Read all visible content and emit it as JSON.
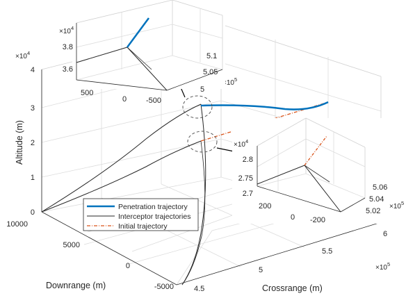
{
  "chart_data": {
    "type": "line",
    "dimensions": "3d",
    "xlabel": "Downrange (m)",
    "ylabel": "Crossrange (m)",
    "zlabel": "Altitude (m)",
    "x_ticks": [
      "10000",
      "5000",
      "0",
      "-5000"
    ],
    "y_ticks": [
      "4.5",
      "5",
      "5.5",
      "6"
    ],
    "y_exponent": "×10^5",
    "z_ticks": [
      "0",
      "1",
      "2",
      "3",
      "4"
    ],
    "z_exponent": "×10^4",
    "xlim": [
      -5000,
      10000
    ],
    "ylim": [
      450000,
      600000
    ],
    "zlim": [
      0,
      40000
    ],
    "grid": true,
    "legend_position": "bottom-left",
    "series": [
      {
        "name": "Penetration trajectory",
        "color": "#0072BD",
        "style": "solid-thick",
        "points": [
          [
            0,
            505000,
            30000
          ],
          [
            0,
            540000,
            30200
          ],
          [
            0,
            570000,
            30600
          ],
          [
            0,
            590000,
            31500
          ]
        ]
      },
      {
        "name": "Interceptor trajectories",
        "color": "#262626",
        "style": "solid-thin",
        "points": [
          [
            10000,
            450000,
            0
          ],
          [
            5000,
            474000,
            15000
          ],
          [
            1500,
            494000,
            26500
          ],
          [
            0,
            505000,
            30000
          ]
        ]
      },
      {
        "name": "Interceptor trajectories",
        "color": "#262626",
        "style": "solid-thin",
        "points": [
          [
            10000,
            450000,
            0
          ],
          [
            5000,
            474000,
            10500
          ],
          [
            1500,
            494000,
            18500
          ],
          [
            0,
            505000,
            21000
          ]
        ]
      },
      {
        "name": "Interceptor trajectories",
        "color": "#262626",
        "style": "solid-thin",
        "points": [
          [
            -5000,
            450000,
            0
          ],
          [
            -2500,
            488000,
            10000
          ],
          [
            -1200,
            500000,
            18000
          ],
          [
            0,
            505000,
            30000
          ]
        ]
      },
      {
        "name": "Initial trajectory",
        "color": "#D95319",
        "style": "dash-dot",
        "points": [
          [
            0,
            505000,
            21000
          ],
          [
            0,
            590000,
            31500
          ]
        ]
      }
    ],
    "inset_top": {
      "z_exponent": "×10^4",
      "z_ticks": [
        "3.6",
        "3.8"
      ],
      "x_ticks": [
        "500",
        "0",
        "-500"
      ],
      "y_ticks": [
        "5",
        "5.05",
        "5.1"
      ],
      "y_exponent": "×10^5"
    },
    "inset_bottom": {
      "z_exponent": "×10^4",
      "z_ticks": [
        "2.7",
        "2.75",
        "2.8"
      ],
      "x_ticks": [
        "200",
        "0",
        "-200"
      ],
      "y_ticks": [
        "5.02",
        "5.04",
        "5.06"
      ],
      "y_exponent": "×10^5"
    }
  },
  "legend": {
    "items": [
      {
        "label": "Penetration trajectory",
        "color": "#0072BD"
      },
      {
        "label": "Interceptor trajectories",
        "color": "#262626"
      },
      {
        "label": "Initial trajectory",
        "color": "#D95319"
      }
    ]
  },
  "labels": {
    "zlabel": "Altitude (m)",
    "xlabel": "Downrange (m)",
    "ylabel": "Crossrange (m)",
    "z_exp_base": "×10",
    "z_exp_power": "4",
    "y_exp_base": "×10",
    "y_exp_power": "5",
    "top_y_exp_base": "×10",
    "top_y_exp_power": "5",
    "inset_top_z_exp_base": "×10",
    "inset_top_z_exp_power": "4",
    "inset_top_y_exp_power": "5",
    "inset_bottom_z_exp_base": "×10",
    "inset_bottom_z_exp_power": "4",
    "inset_bottom_y_exp_power": "5",
    "inset_bottom_y_exp_base": "×10"
  }
}
